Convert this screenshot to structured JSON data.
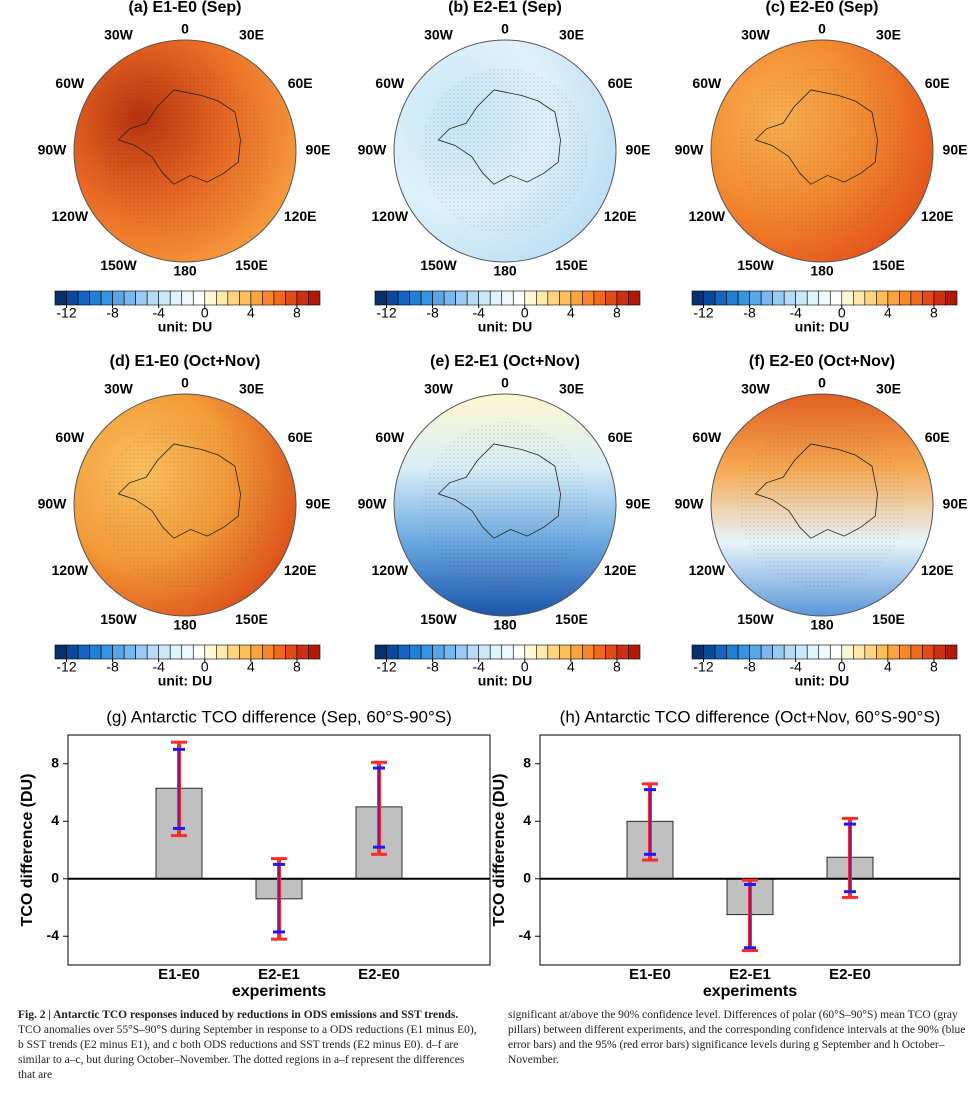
{
  "maps": {
    "panels": [
      {
        "title": "(a) E1-E0 (Sep)"
      },
      {
        "title": "(b) E2-E1 (Sep)"
      },
      {
        "title": "(c) E2-E0 (Sep)"
      },
      {
        "title": "(d) E1-E0 (Oct+Nov)"
      },
      {
        "title": "(e) E2-E1 (Oct+Nov)"
      },
      {
        "title": "(f) E2-E0 (Oct+Nov)"
      }
    ],
    "longitudes": [
      "0",
      "30E",
      "60E",
      "90E",
      "120E",
      "150E",
      "180",
      "150W",
      "120W",
      "90W",
      "60W",
      "30W"
    ],
    "colorbar": {
      "ticks": [
        -12,
        -8,
        -4,
        0,
        4,
        8
      ],
      "lim": [
        -13,
        10
      ],
      "colors": [
        "#08306b",
        "#0b4a9a",
        "#1565c0",
        "#1e7fd6",
        "#3a93e0",
        "#58a6e8",
        "#78b8ee",
        "#98caf2",
        "#b4daf6",
        "#cce8f8",
        "#e0f2fa",
        "#f0fafc",
        "#ffffff",
        "#fff8d8",
        "#ffe9a8",
        "#ffd480",
        "#ffbe5a",
        "#fca43c",
        "#f7882a",
        "#ef6a1f",
        "#e24b17",
        "#cc3010",
        "#b01a0a"
      ],
      "unit": "unit: DU"
    }
  },
  "chart_data": [
    {
      "type": "bar",
      "title": "(g) Antarctic TCO difference (Sep, 60°S-90°S)",
      "x_label": "experiments",
      "y_label": "TCO difference (DU)",
      "categories": [
        "E1-E0",
        "E2-E1",
        "E2-E0"
      ],
      "values": [
        6.3,
        -1.4,
        5.0
      ],
      "color": "#c0c0c0",
      "ci90": [
        [
          3.5,
          9.0
        ],
        [
          -3.7,
          1.0
        ],
        [
          2.2,
          7.7
        ]
      ],
      "ci90_color": "#1a1aff",
      "ci95": [
        [
          3.0,
          9.5
        ],
        [
          -4.2,
          1.4
        ],
        [
          1.7,
          8.1
        ]
      ],
      "ci95_color": "#ff2a2a",
      "ylim": [
        -6,
        10
      ],
      "yticks": [
        -4,
        0,
        4,
        8
      ]
    },
    {
      "type": "bar",
      "title": "(h) Antarctic TCO difference (Oct+Nov, 60°S-90°S)",
      "x_label": "experiments",
      "y_label": "TCO difference (DU)",
      "categories": [
        "E1-E0",
        "E2-E1",
        "E2-E0"
      ],
      "values": [
        4.0,
        -2.5,
        1.5
      ],
      "color": "#c0c0c0",
      "ci90": [
        [
          1.7,
          6.2
        ],
        [
          -4.8,
          -0.4
        ],
        [
          -0.9,
          3.8
        ]
      ],
      "ci90_color": "#1a1aff",
      "ci95": [
        [
          1.3,
          6.6
        ],
        [
          -5.0,
          -0.1
        ],
        [
          -1.3,
          4.2
        ]
      ],
      "ci95_color": "#ff2a2a",
      "ylim": [
        -6,
        10
      ],
      "yticks": [
        -4,
        0,
        4,
        8
      ]
    }
  ],
  "caption": {
    "title": "Fig. 2 | Antarctic TCO responses induced by reductions in ODS emissions and SST trends.",
    "body_left": "TCO anomalies over 55°S–90°S during September in response to a ODS reductions (E1 minus E0), b SST trends (E2 minus E1), and c both ODS reductions and SST trends (E2 minus E0). d–f are similar to a–c, but during October–November. The dotted regions in a–f represent the differences that are",
    "body_right": "significant at/above the 90% confidence level. Differences of polar (60°S–90°S) mean TCO (gray pillars) between different experiments, and the corresponding confidence intervals at the 90% (blue error bars) and the 95% (red error bars) significance levels during g September and h October–November."
  }
}
